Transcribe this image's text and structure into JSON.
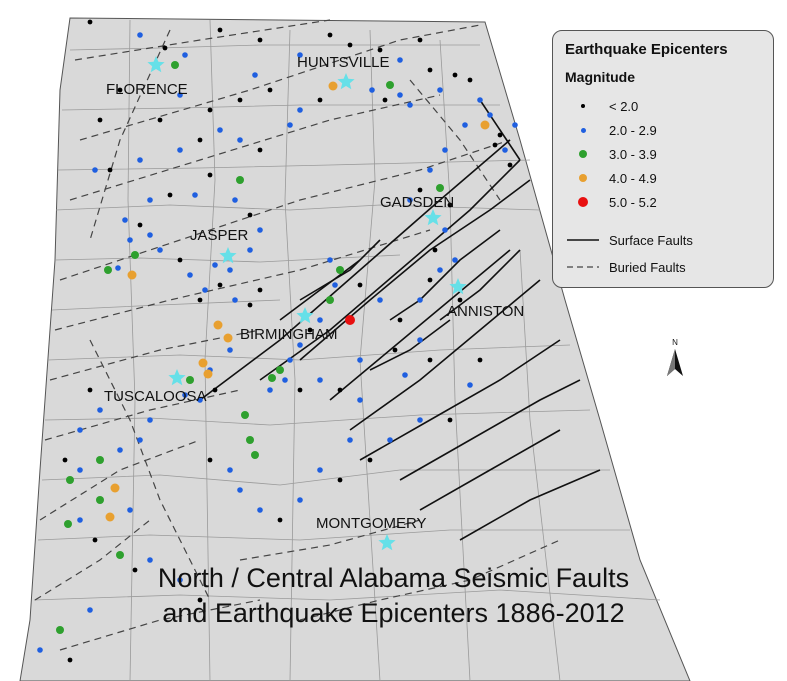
{
  "cities": [
    {
      "name": "FLORENCE"
    },
    {
      "name": "HUNTSVILLE"
    },
    {
      "name": "GADSDEN"
    },
    {
      "name": "JASPER"
    },
    {
      "name": "ANNISTON"
    },
    {
      "name": "BIRMINGHAM"
    },
    {
      "name": "TUSCALOOSA"
    },
    {
      "name": "MONTGOMERY"
    }
  ],
  "legend": {
    "title": "Earthquake Epicenters",
    "subtitle": "Magnitude",
    "classes": [
      {
        "label": "< 2.0",
        "color": "#000000"
      },
      {
        "label": "2.0 - 2.9",
        "color": "#1f5fe0"
      },
      {
        "label": "3.0 - 3.9",
        "color": "#2ea02e"
      },
      {
        "label": "4.0 - 4.9",
        "color": "#e8a030"
      },
      {
        "label": "5.0 - 5.2",
        "color": "#e81010"
      }
    ],
    "surface_faults": "Surface Faults",
    "buried_faults": "Buried Faults"
  },
  "north_arrow": {
    "label": "N"
  },
  "title": {
    "line1": "North / Central Alabama Seismic Faults",
    "line2": "and Earthquake Epicenters 1886-2012"
  },
  "colors": {
    "land": "#d9d9d9",
    "county_lines": "#9a9a9a",
    "city_star": "#66e0e8"
  }
}
